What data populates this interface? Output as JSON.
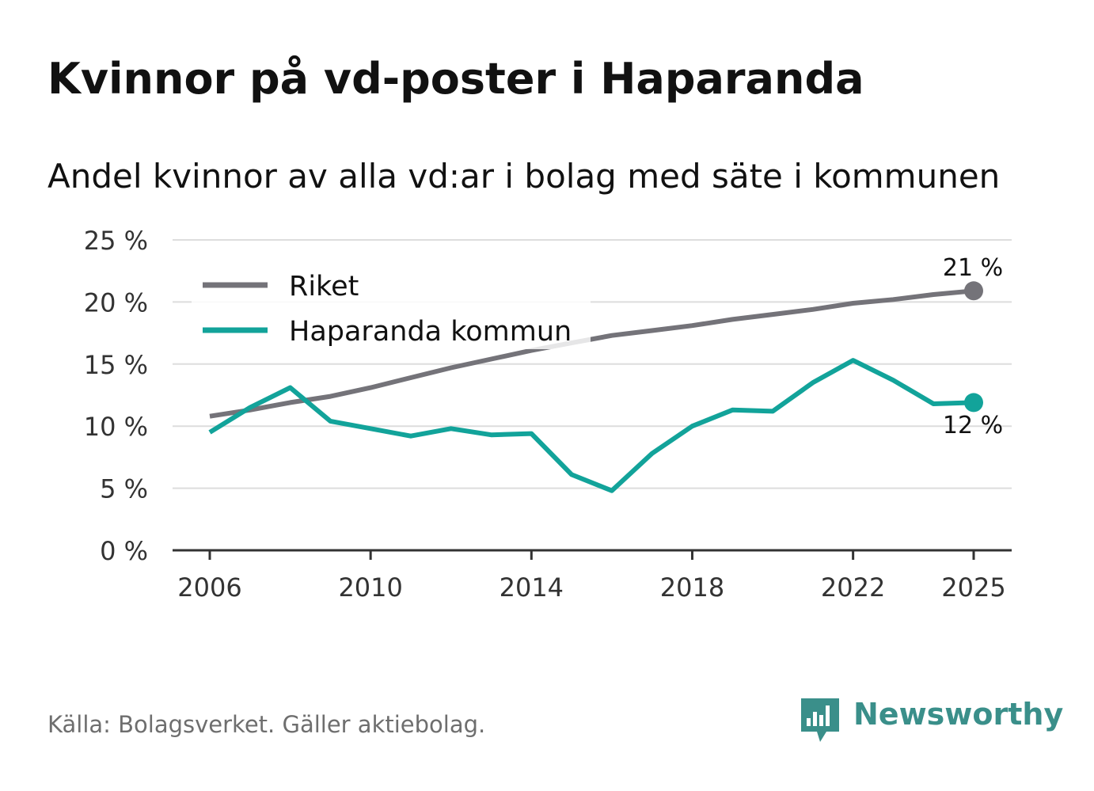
{
  "title": "Kvinnor på vd-poster i Haparanda",
  "subtitle": "Andel kvinnor av alla vd:ar i bolag med säte i kommunen",
  "source": "Källa: Bolagsverket. Gäller aktiebolag.",
  "brand": {
    "name": "Newsworthy",
    "icon": "bar-chart-badge-icon",
    "color": "#3a8f8a"
  },
  "chart_data": {
    "type": "line",
    "title": "Kvinnor på vd-poster i Haparanda",
    "subtitle": "Andel kvinnor av alla vd:ar i bolag med säte i kommunen",
    "xlabel": "",
    "ylabel": "",
    "x": [
      2006,
      2007,
      2008,
      2009,
      2010,
      2011,
      2012,
      2013,
      2014,
      2015,
      2016,
      2017,
      2018,
      2019,
      2020,
      2021,
      2022,
      2023,
      2024,
      2025
    ],
    "x_ticks": [
      2006,
      2010,
      2014,
      2018,
      2022,
      2025
    ],
    "x_tick_labels": [
      "2006",
      "2010",
      "2014",
      "2018",
      "2022",
      "2025"
    ],
    "ylim": [
      0,
      25
    ],
    "y_ticks": [
      0,
      5,
      10,
      15,
      20,
      25
    ],
    "y_tick_labels": [
      "0 %",
      "5 %",
      "10 %",
      "15 %",
      "20 %",
      "25 %"
    ],
    "grid": true,
    "legend_position": "top-left",
    "series": [
      {
        "name": "Riket",
        "color": "#747379",
        "values": [
          10.8,
          11.3,
          11.9,
          12.4,
          13.1,
          13.9,
          14.7,
          15.4,
          16.1,
          16.7,
          17.3,
          17.7,
          18.1,
          18.6,
          19.0,
          19.4,
          19.9,
          20.2,
          20.6,
          20.9
        ],
        "end_label": "21 %"
      },
      {
        "name": "Haparanda kommun",
        "color": "#12a39a",
        "values": [
          9.5,
          11.5,
          13.1,
          10.4,
          9.8,
          9.2,
          9.8,
          9.3,
          9.4,
          6.1,
          4.8,
          7.8,
          10.0,
          11.3,
          11.2,
          13.5,
          15.3,
          13.7,
          11.8,
          11.9
        ],
        "end_label": "12 %"
      }
    ]
  }
}
